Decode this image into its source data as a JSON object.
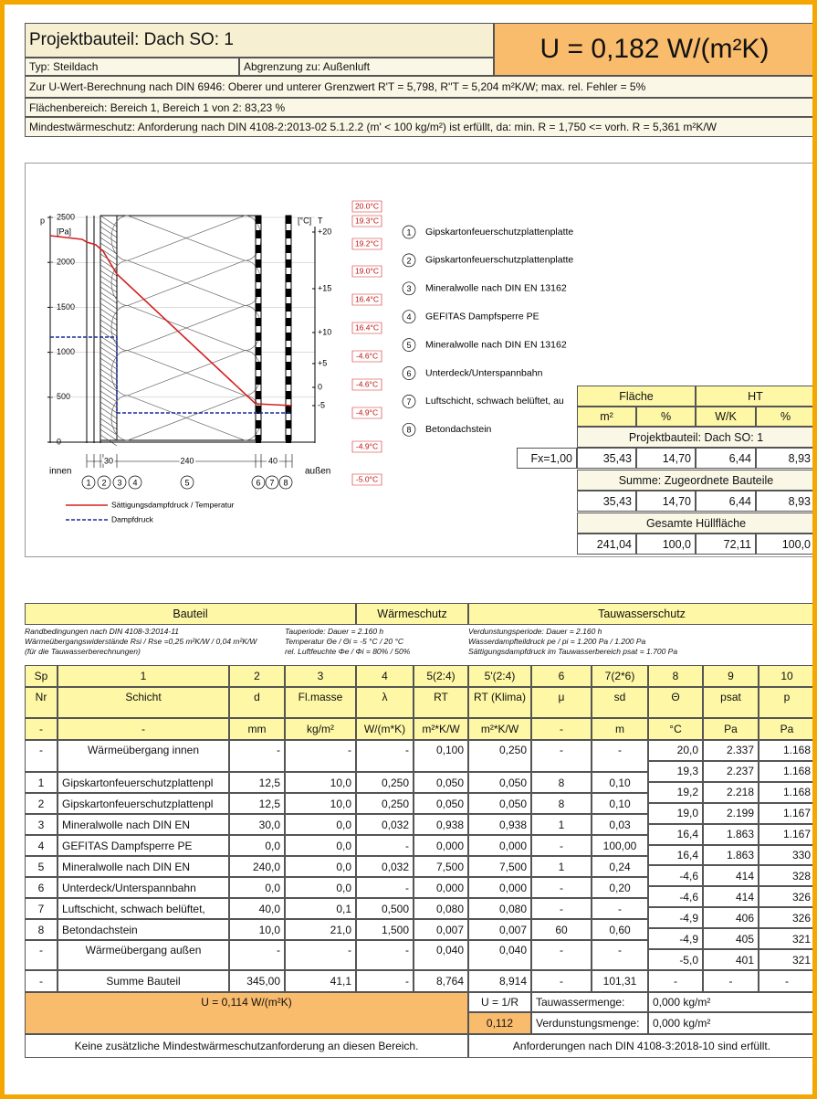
{
  "header": {
    "title": "Projektbauteil: Dach SO: 1",
    "u_value": "U = 0,182 W/(m²K)",
    "typ": "Typ: Steildach",
    "abgrenzung": "Abgrenzung zu: Außenluft",
    "lines": [
      "Zur U-Wert-Berechnung nach DIN 6946: Oberer und unterer Grenzwert R'T = 5,798, R''T = 5,204 m²K/W; max. rel. Fehler = 5%",
      "Flächenbereich: Bereich 1, Bereich 1 von 2: 83,23 %",
      "Mindestwärmeschutz: Anforderung nach DIN 4108-2:2013-02 5.1.2.2 (m' < 100 kg/m²) ist erfüllt, da: min. R = 1,750 <= vorh. R =  5,361 m²K/W"
    ]
  },
  "diagram": {
    "p_label": "p",
    "p_unit": "[Pa]",
    "p_ticks": [
      2500,
      2000,
      1500,
      1000,
      500,
      0
    ],
    "t_unit": "[°C]",
    "t_label": "T",
    "t_ticks": [
      "+20",
      "+15",
      "+10",
      "+5",
      "0",
      "-5"
    ],
    "temperatures": [
      "20.0°C",
      "19.3°C",
      "19.2°C",
      "19.0°C",
      "16.4°C",
      "16.4°C",
      "-4.6°C",
      "-4.6°C",
      "-4.9°C",
      "-4.9°C",
      "-5.0°C"
    ],
    "dimensions": [
      "30",
      "240",
      "40"
    ],
    "inside": "innen",
    "outside": "außen",
    "layer_markers": [
      "1",
      "2",
      "3",
      "4",
      "5",
      "6",
      "7",
      "8"
    ],
    "legend": [
      "Sättigungsdampfdruck / Temperatur",
      "Dampfdruck"
    ],
    "layers": [
      {
        "number": "1",
        "name": "Gipskartonfeuerschutzplattenplatte"
      },
      {
        "number": "2",
        "name": "Gipskartonfeuerschutzplattenplatte"
      },
      {
        "number": "3",
        "name": "Mineralwolle nach DIN EN 13162"
      },
      {
        "number": "4",
        "name": "GEFITAS Dampfsperre PE"
      },
      {
        "number": "5",
        "name": "Mineralwolle nach DIN EN 13162"
      },
      {
        "number": "6",
        "name": "Unterdeck/Unterspannbahn"
      },
      {
        "number": "7",
        "name": "Luftschicht, schwach belüftet, au"
      },
      {
        "number": "8",
        "name": "Betondachstein"
      }
    ]
  },
  "area_table": {
    "headers": [
      "Fläche",
      "HT"
    ],
    "units": [
      "m²",
      "%",
      "W/K",
      "%"
    ],
    "sections": [
      {
        "title": "Projektbauteil: Dach SO: 1",
        "label": "Fx=1,00",
        "values": [
          "35,43",
          "14,70",
          "6,44",
          "8,93"
        ]
      },
      {
        "title": "Summe: Zugeordnete Bauteile",
        "values": [
          "35,43",
          "14,70",
          "6,44",
          "8,93"
        ]
      },
      {
        "title": "Gesamte Hüllfläche",
        "values": [
          "241,04",
          "100,0",
          "72,11",
          "100,0"
        ]
      }
    ]
  },
  "table": {
    "groups": [
      "Bauteil",
      "Wärmeschutz",
      "Tauwasserschutz"
    ],
    "notes": [
      [
        "Randbedingungen nach DIN 4108-3:2014-11",
        "Wärmeübergangswiderstände Rsi / Rse =0,25 m²K/W / 0,04 m²K/W",
        "(für die Tauwasserberechnungen)"
      ],
      [
        "Tauperiode: Dauer = 2.160 h",
        "Temperatur Θe / Θi = -5 °C / 20 °C",
        "rel. Luftfeuchte Φe / Φi = 80% / 50%"
      ],
      [
        "Verdunstungsperiode: Dauer = 2.160 h",
        "Wasserdampfteildruck pe / pi = 1.200 Pa / 1.200 Pa",
        "Sättigungsdampfdruck im Tauwasserbereich psat = 1.700 Pa"
      ]
    ],
    "column_numbers": [
      "Sp",
      "1",
      "2",
      "3",
      "4",
      "5(2:4)",
      "5'(2:4)",
      "6",
      "7(2*6)",
      "8",
      "9",
      "10"
    ],
    "column_names": [
      "Nr",
      "Schicht",
      "d",
      "Fl.masse",
      "λ",
      "RT",
      "RT (Klima)",
      "μ",
      "sd",
      "Θ",
      "psat",
      "p"
    ],
    "units": [
      "-",
      "-",
      "mm",
      "kg/m²",
      "W/(m*K)",
      "m²*K/W",
      "m²*K/W",
      "-",
      "m",
      "°C",
      "Pa",
      "Pa"
    ],
    "layer_rows": [
      [
        "-",
        "Wärmeübergang innen",
        "-",
        "-",
        "-",
        "0,100",
        "0,250",
        "-",
        "-"
      ],
      [
        "1",
        "Gipskartonfeuerschutzplattenpl",
        "12,5",
        "10,0",
        "0,250",
        "0,050",
        "0,050",
        "8",
        "0,10"
      ],
      [
        "2",
        "Gipskartonfeuerschutzplattenpl",
        "12,5",
        "10,0",
        "0,250",
        "0,050",
        "0,050",
        "8",
        "0,10"
      ],
      [
        "3",
        "Mineralwolle nach DIN EN",
        "30,0",
        "0,0",
        "0,032",
        "0,938",
        "0,938",
        "1",
        "0,03"
      ],
      [
        "4",
        "GEFITAS Dampfsperre PE",
        "0,0",
        "0,0",
        "-",
        "0,000",
        "0,000",
        "-",
        "100,00"
      ],
      [
        "5",
        "Mineralwolle nach DIN EN",
        "240,0",
        "0,0",
        "0,032",
        "7,500",
        "7,500",
        "1",
        "0,24"
      ],
      [
        "6",
        "Unterdeck/Unterspannbahn",
        "0,0",
        "0,0",
        "-",
        "0,000",
        "0,000",
        "-",
        "0,20"
      ],
      [
        "7",
        "Luftschicht, schwach belüftet,",
        "40,0",
        "0,1",
        "0,500",
        "0,080",
        "0,080",
        "-",
        "-"
      ],
      [
        "8",
        "Betondachstein",
        "10,0",
        "21,0",
        "1,500",
        "0,007",
        "0,007",
        "60",
        "0,60"
      ],
      [
        "-",
        "Wärmeübergang außen",
        "-",
        "-",
        "-",
        "0,040",
        "0,040",
        "-",
        "-"
      ]
    ],
    "boundary_rows": [
      [
        "20,0",
        "2.337",
        "1.168"
      ],
      [
        "19,3",
        "2.237",
        "1.168"
      ],
      [
        "19,2",
        "2.218",
        "1.168"
      ],
      [
        "19,0",
        "2.199",
        "1.167"
      ],
      [
        "16,4",
        "1.863",
        "1.167"
      ],
      [
        "16,4",
        "1.863",
        "330"
      ],
      [
        "-4,6",
        "414",
        "328"
      ],
      [
        "-4,6",
        "414",
        "326"
      ],
      [
        "-4,9",
        "406",
        "326"
      ],
      [
        "-4,9",
        "405",
        "321"
      ],
      [
        "-5,0",
        "401",
        "321"
      ]
    ],
    "sum_row": [
      "-",
      "Summe Bauteil",
      "345,00",
      "41,1",
      "-",
      "8,764",
      "8,914",
      "-",
      "101,31",
      "-",
      "-",
      "-"
    ],
    "u_value": "U = 0,114 W/(m²K)",
    "u_formula": "U = 1/R",
    "u_formula_value": "0,112",
    "condensate": [
      "Tauwassermenge:",
      "0,000 kg/m²"
    ],
    "evaporation": [
      "Verdunstungsmenge:",
      "0,000 kg/m²"
    ],
    "conclusions": [
      "Keine zusätzliche Mindestwärmeschutzanforderung an diesen Bereich.",
      "Anforderungen nach DIN 4108-3:2018-10 sind erfüllt."
    ]
  }
}
